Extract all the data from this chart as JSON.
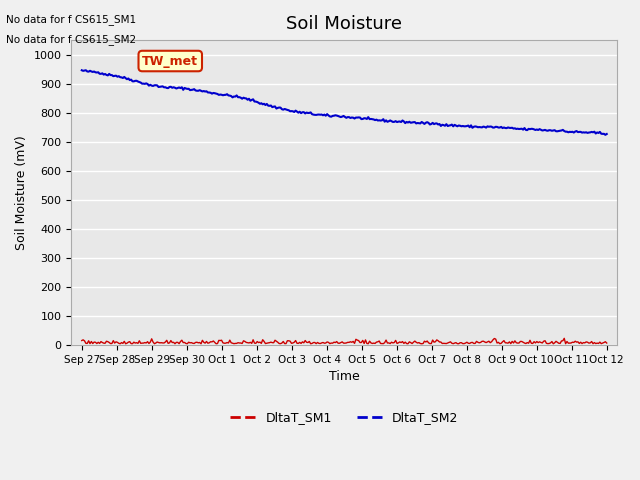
{
  "title": "Soil Moisture",
  "ylabel": "Soil Moisture (mV)",
  "xlabel": "Time",
  "no_data_text": [
    "No data for f CS615_SM1",
    "No data for f CS615_SM2"
  ],
  "annotation_text": "TW_met",
  "annotation_color": "#cc2200",
  "annotation_bg": "#ffffcc",
  "ylim": [
    0,
    1050
  ],
  "yticks": [
    0,
    100,
    200,
    300,
    400,
    500,
    600,
    700,
    800,
    900,
    1000
  ],
  "xtick_labels": [
    "Sep 27",
    "Sep 28",
    "Sep 29",
    "Sep 30",
    "Oct 1",
    "Oct 2",
    "Oct 3",
    "Oct 4",
    "Oct 5",
    "Oct 6",
    "Oct 7",
    "Oct 8",
    "Oct 9",
    "Oct 10",
    "Oct 11",
    "Oct 12"
  ],
  "bg_color": "#e8e8e8",
  "grid_color": "#ffffff",
  "line_sm1_color": "#cc0000",
  "line_sm2_color": "#0000cc",
  "legend_labels": [
    "DltaT_SM1",
    "DltaT_SM2"
  ],
  "title_fontsize": 13,
  "axis_fontsize": 9,
  "tick_fontsize": 8,
  "sm2_breakpoints": [
    0,
    1,
    2,
    3.3,
    4.5,
    5.0,
    6.0,
    7.0,
    8.0,
    9.0,
    10.0,
    11.0,
    12.0,
    13.0,
    14.0,
    15.0
  ],
  "sm2_values": [
    947,
    930,
    895,
    880,
    855,
    840,
    805,
    793,
    782,
    772,
    763,
    756,
    751,
    743,
    737,
    728
  ]
}
